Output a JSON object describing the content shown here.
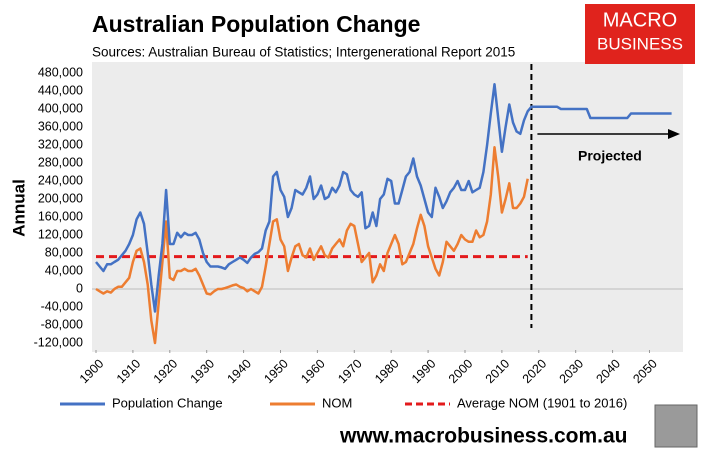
{
  "chart_data": {
    "type": "line",
    "title": "Australian Population Change",
    "subtitle": "Sources: Australian Bureau of Statistics; Intergenerational Report 2015",
    "logo": [
      "MACRO",
      "BUSINESS"
    ],
    "y_label": "Annual",
    "annotation": "Projected",
    "footer": "www.macrobusiness.com.au",
    "x": [
      1900,
      1901,
      1902,
      1903,
      1904,
      1905,
      1906,
      1907,
      1908,
      1909,
      1910,
      1911,
      1912,
      1913,
      1914,
      1915,
      1916,
      1917,
      1918,
      1919,
      1920,
      1921,
      1922,
      1923,
      1924,
      1925,
      1926,
      1927,
      1928,
      1929,
      1930,
      1931,
      1932,
      1933,
      1934,
      1935,
      1936,
      1937,
      1938,
      1939,
      1940,
      1941,
      1942,
      1943,
      1944,
      1945,
      1946,
      1947,
      1948,
      1949,
      1950,
      1951,
      1952,
      1953,
      1954,
      1955,
      1956,
      1957,
      1958,
      1959,
      1960,
      1961,
      1962,
      1963,
      1964,
      1965,
      1966,
      1967,
      1968,
      1969,
      1970,
      1971,
      1972,
      1973,
      1974,
      1975,
      1976,
      1977,
      1978,
      1979,
      1980,
      1981,
      1982,
      1983,
      1984,
      1985,
      1986,
      1987,
      1988,
      1989,
      1990,
      1991,
      1992,
      1993,
      1994,
      1995,
      1996,
      1997,
      1998,
      1999,
      2000,
      2001,
      2002,
      2003,
      2004,
      2005,
      2006,
      2007,
      2008,
      2009,
      2010,
      2011,
      2012,
      2013,
      2014,
      2015,
      2016,
      2017,
      2018,
      2025,
      2026,
      2033,
      2034,
      2044,
      2045,
      2056
    ],
    "series": [
      {
        "name": "Population Change",
        "color": "#4472c4",
        "values": [
          60000,
          50000,
          40000,
          55000,
          55000,
          60000,
          65000,
          75000,
          85000,
          100000,
          120000,
          155000,
          170000,
          145000,
          80000,
          10000,
          -50000,
          30000,
          100000,
          220000,
          100000,
          100000,
          125000,
          115000,
          125000,
          120000,
          120000,
          125000,
          110000,
          80000,
          60000,
          50000,
          50000,
          50000,
          48000,
          45000,
          55000,
          60000,
          65000,
          70000,
          65000,
          58000,
          70000,
          78000,
          82000,
          90000,
          130000,
          150000,
          250000,
          260000,
          220000,
          205000,
          160000,
          180000,
          220000,
          215000,
          210000,
          225000,
          250000,
          200000,
          210000,
          230000,
          200000,
          205000,
          225000,
          215000,
          230000,
          260000,
          255000,
          220000,
          210000,
          205000,
          215000,
          135000,
          140000,
          170000,
          140000,
          200000,
          210000,
          245000,
          240000,
          190000,
          190000,
          220000,
          250000,
          260000,
          290000,
          250000,
          230000,
          200000,
          170000,
          160000,
          225000,
          205000,
          180000,
          195000,
          215000,
          225000,
          240000,
          220000,
          220000,
          240000,
          215000,
          220000,
          225000,
          260000,
          320000,
          390000,
          455000,
          380000,
          305000,
          360000,
          410000,
          370000,
          350000,
          345000,
          375000,
          395000,
          405000,
          405000,
          400000,
          400000,
          380000,
          380000,
          390000,
          390000
        ]
      },
      {
        "name": "NOM",
        "color": "#ed7d31",
        "values": [
          0,
          -5000,
          -10000,
          -5000,
          -8000,
          0,
          5000,
          5000,
          15000,
          25000,
          60000,
          85000,
          90000,
          60000,
          10000,
          -70000,
          -120000,
          -30000,
          60000,
          150000,
          25000,
          20000,
          40000,
          40000,
          45000,
          40000,
          40000,
          45000,
          30000,
          10000,
          -10000,
          -12000,
          -5000,
          0,
          0,
          2000,
          5000,
          8000,
          10000,
          5000,
          2000,
          -5000,
          0,
          -5000,
          -10000,
          5000,
          50000,
          100000,
          150000,
          155000,
          110000,
          95000,
          40000,
          70000,
          95000,
          100000,
          75000,
          70000,
          90000,
          65000,
          80000,
          95000,
          75000,
          70000,
          90000,
          100000,
          110000,
          95000,
          130000,
          145000,
          140000,
          100000,
          60000,
          70000,
          80000,
          15000,
          30000,
          55000,
          40000,
          80000,
          100000,
          120000,
          100000,
          55000,
          60000,
          80000,
          100000,
          135000,
          165000,
          140000,
          95000,
          70000,
          45000,
          30000,
          60000,
          105000,
          95000,
          85000,
          100000,
          120000,
          110000,
          105000,
          105000,
          130000,
          115000,
          120000,
          150000,
          210000,
          315000,
          250000,
          170000,
          200000,
          235000,
          180000,
          180000,
          190000,
          205000,
          245000,
          null,
          null,
          null,
          null,
          null,
          null,
          null,
          null
        ]
      }
    ],
    "average": {
      "name": "Average NOM (1901 to 2016)",
      "color": "#e31a1c",
      "value": 72000,
      "from": 1900,
      "to": 2017
    },
    "projection_divider": 2018,
    "xlim": [
      1900,
      2058
    ],
    "xticks": [
      1900,
      1910,
      1920,
      1930,
      1940,
      1950,
      1960,
      1970,
      1980,
      1990,
      2000,
      2010,
      2020,
      2030,
      2040,
      2050
    ],
    "ylim": [
      -120000,
      480000
    ],
    "yticks": [
      {
        "value": -120000,
        "label": "-120,000"
      },
      {
        "value": -80000,
        "label": "-80,000"
      },
      {
        "value": -40000,
        "label": "-40,000"
      },
      {
        "value": 0,
        "label": "0"
      },
      {
        "value": 40000,
        "label": "40,000"
      },
      {
        "value": 80000,
        "label": "80,000"
      },
      {
        "value": 120000,
        "label": "120,000"
      },
      {
        "value": 160000,
        "label": "160,000"
      },
      {
        "value": 200000,
        "label": "200,000"
      },
      {
        "value": 240000,
        "label": "240,000"
      },
      {
        "value": 280000,
        "label": "280,000"
      },
      {
        "value": 320000,
        "label": "320,000"
      },
      {
        "value": 360000,
        "label": "360,000"
      },
      {
        "value": 400000,
        "label": "400,000"
      },
      {
        "value": 440000,
        "label": "440,000"
      },
      {
        "value": 480000,
        "label": "480,000"
      }
    ]
  }
}
